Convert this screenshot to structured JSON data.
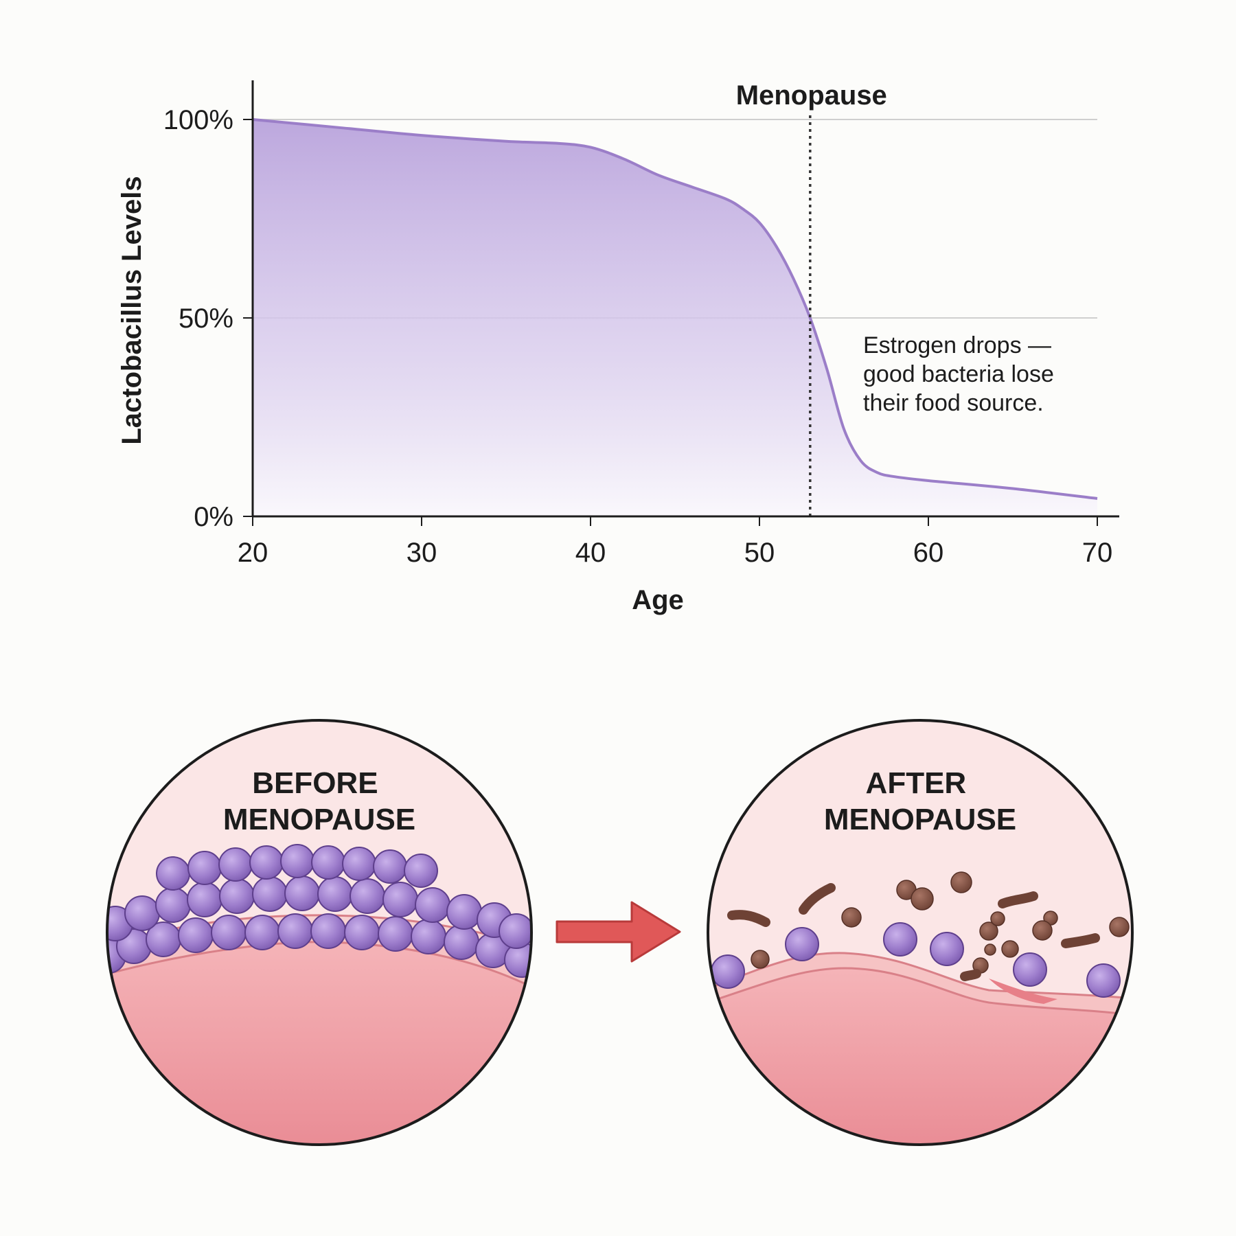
{
  "chart_data": {
    "type": "area",
    "x": [
      20,
      25,
      30,
      35,
      38,
      40,
      42,
      44,
      46,
      48,
      49,
      50,
      51,
      52,
      53,
      54,
      55,
      56,
      57,
      58,
      60,
      65,
      70
    ],
    "values": [
      100,
      98,
      96,
      94.5,
      94,
      93,
      90,
      86,
      83,
      80,
      77.5,
      74,
      68,
      60,
      50,
      37,
      22,
      14,
      11,
      10,
      9,
      7,
      4.5
    ],
    "series": [
      {
        "values": [
          100,
          98,
          96,
          94.5,
          94,
          93,
          90,
          86,
          83,
          80,
          77.5,
          74,
          68,
          60,
          50,
          37,
          22,
          14,
          11,
          10,
          9,
          7,
          4.5
        ]
      }
    ],
    "xlabel": "Age",
    "ylabel": "Lactobacillus Levels",
    "xlim": [
      20,
      70
    ],
    "ylim": [
      0,
      100
    ],
    "xticks": [
      20,
      30,
      40,
      50,
      60,
      70
    ],
    "yticks": [
      {
        "value": 0,
        "label": "0%"
      },
      {
        "value": 50,
        "label": "50%"
      },
      {
        "value": 100,
        "label": "100%"
      }
    ],
    "grid": "horizontal at 50% and 100%",
    "marker": {
      "label": "Menopause",
      "x": 53
    },
    "annotation": [
      "Estrogen drops —",
      "good bacteria lose",
      "their food source."
    ],
    "colors": {
      "line": "#9b7ec8",
      "fill_top": "#b9a3dc",
      "fill_bottom": "#faf8fc",
      "marker": "#333333"
    }
  },
  "illustration": {
    "before_title": [
      "BEFORE",
      "MENOPAUSE"
    ],
    "after_title": [
      "AFTER",
      "MENOPAUSE"
    ],
    "colors": {
      "lactobacillus": "#9d7dcc",
      "harmful_bacteria": "#7a4b3e",
      "tissue": "#f0a4aa",
      "lumen": "#fbe6e6",
      "arrow": "#e05858"
    },
    "icons": [
      "lactobacillus-cell",
      "harmful-bacteria",
      "transition-arrow-icon"
    ]
  }
}
